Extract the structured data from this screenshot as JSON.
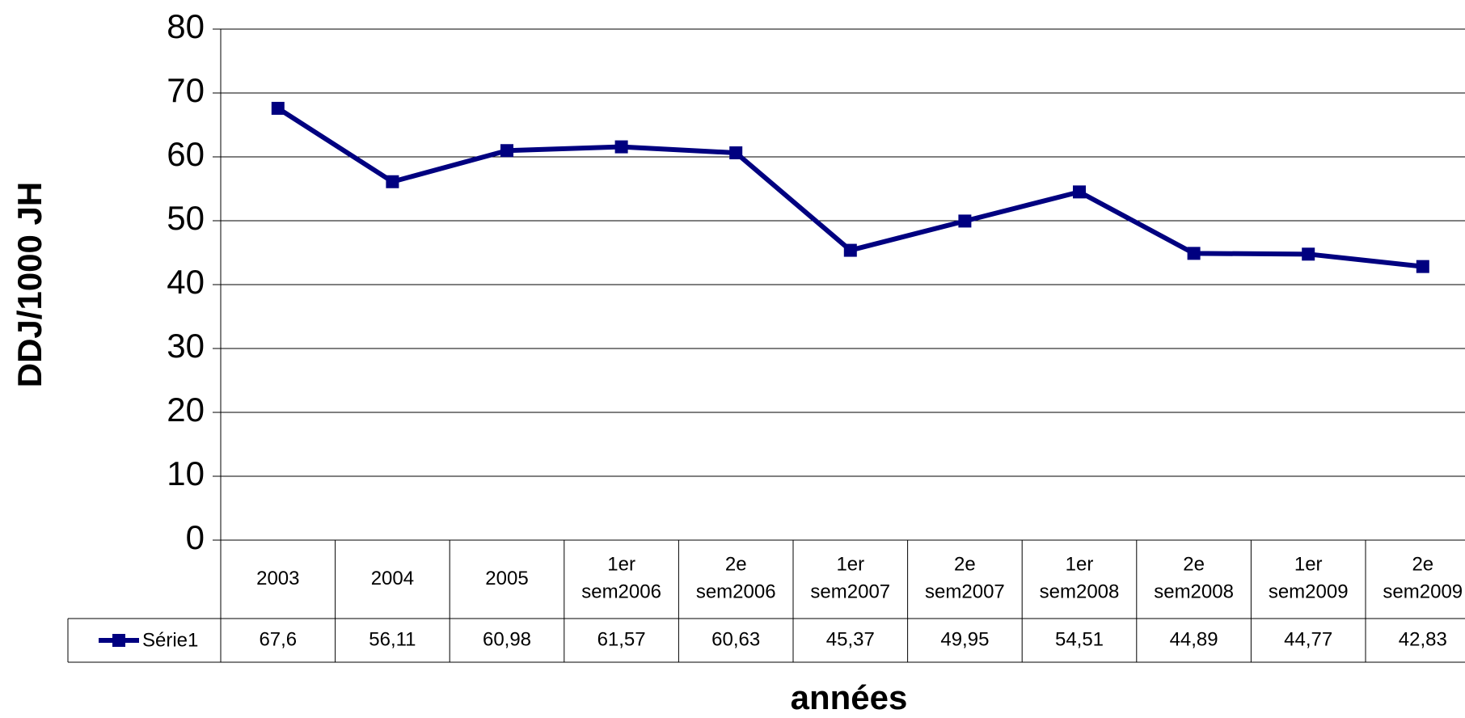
{
  "chart_data": {
    "type": "line",
    "y_label": "DDJ/1000 JH",
    "x_label": "années",
    "categories": [
      "2003",
      "2004",
      "2005",
      "1er sem2006",
      "2e sem2006",
      "1er sem2007",
      "2e sem2007",
      "1er sem2008",
      "2e sem2008",
      "1er sem2009",
      "2e sem2009"
    ],
    "series": [
      {
        "name": "Série1",
        "color": "#000080",
        "values": [
          67.6,
          56.11,
          60.98,
          61.57,
          60.63,
          45.37,
          49.95,
          54.51,
          44.89,
          44.77,
          42.83
        ],
        "value_labels": [
          "67,6",
          "56,11",
          "60,98",
          "61,57",
          "60,63",
          "45,37",
          "49,95",
          "54,51",
          "44,89",
          "44,77",
          "42,83"
        ]
      }
    ],
    "ylim": [
      0,
      80
    ],
    "yticks": [
      0,
      10,
      20,
      30,
      40,
      50,
      60,
      70,
      80
    ],
    "grid": true,
    "data_table": true
  }
}
